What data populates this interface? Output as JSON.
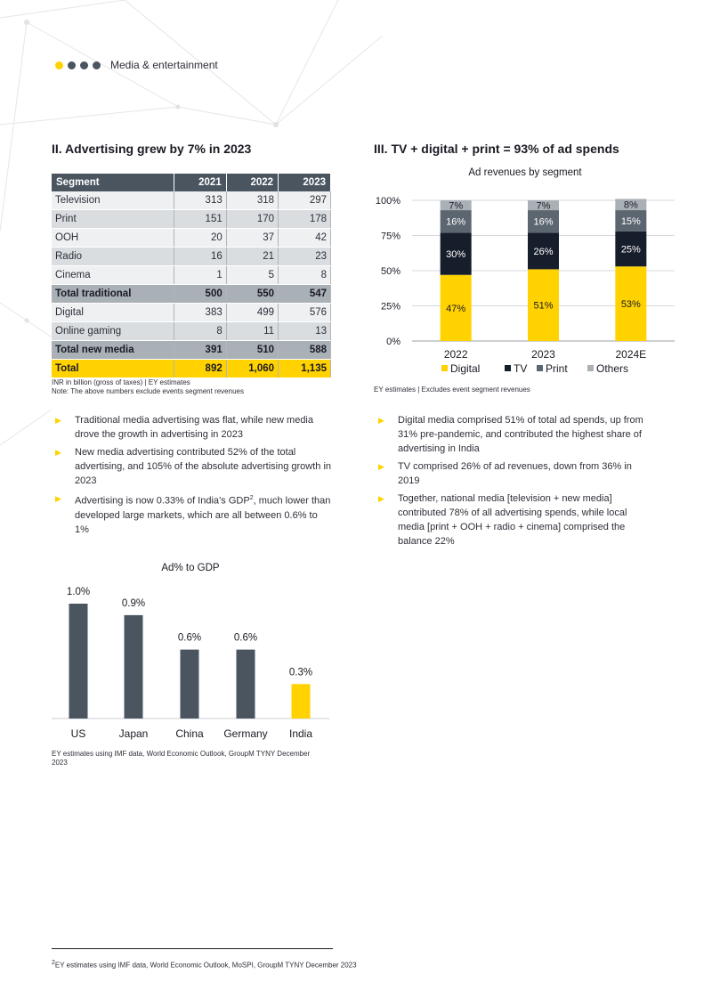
{
  "header": {
    "section": "Media & entertainment"
  },
  "left": {
    "title": "II. Advertising grew by 7% in 2023",
    "table": {
      "headers": [
        "Segment",
        "2021",
        "2022",
        "2023"
      ],
      "rows": [
        {
          "cells": [
            "Television",
            "313",
            "318",
            "297"
          ],
          "style": "odd"
        },
        {
          "cells": [
            "Print",
            "151",
            "170",
            "178"
          ],
          "style": "even"
        },
        {
          "cells": [
            "OOH",
            "20",
            "37",
            "42"
          ],
          "style": "odd"
        },
        {
          "cells": [
            "Radio",
            "16",
            "21",
            "23"
          ],
          "style": "even"
        },
        {
          "cells": [
            "Cinema",
            "1",
            "5",
            "8"
          ],
          "style": "odd"
        },
        {
          "cells": [
            "Total traditional",
            "500",
            "550",
            "547"
          ],
          "style": "sub"
        },
        {
          "cells": [
            "Digital",
            "383",
            "499",
            "576"
          ],
          "style": "odd"
        },
        {
          "cells": [
            "Online gaming",
            "8",
            "11",
            "13"
          ],
          "style": "even"
        },
        {
          "cells": [
            "Total new media",
            "391",
            "510",
            "588"
          ],
          "style": "sub"
        },
        {
          "cells": [
            "Total",
            "892",
            "1,060",
            "1,135"
          ],
          "style": "tot"
        }
      ]
    },
    "note1": "INR in billion (gross of taxes) | EY estimates",
    "note2": "Note: The above numbers exclude events segment revenues",
    "bullets": [
      {
        "text": "Traditional media advertising was flat, while new media drove the growth in advertising in 2023"
      },
      {
        "text": "New media advertising contributed 52% of the total advertising, and 105% of the absolute advertising growth in 2023"
      },
      {
        "pre": "Advertising is now 0.33% of India’s GDP",
        "sup": "2",
        "post": ", much lower than developed large markets, which are all between 0.6% to 1%"
      }
    ],
    "gdp_source": "EY estimates using IMF data, World Economic Outlook, GroupM TYNY December 2023"
  },
  "right": {
    "title": "III. TV + digital + print = 93% of ad spends",
    "source": "EY estimates | Excludes event segment revenues",
    "bullets": [
      "Digital media comprised 51% of total ad spends, up from 31% pre-pandemic, and contributed the highest share of advertising in India",
      "TV comprised 26% of ad revenues, down from 36% in 2019",
      "Together, national media [television + new media] contributed 78% of all advertising spends, while local media [print + OOH + radio + cinema] comprised the balance 22%"
    ]
  },
  "footnote": "EY estimates using IMF data, World Economic Outlook, MoSPI, GroupM TYNY December 2023",
  "footnote_mark": "2",
  "colors": {
    "accent": "#ffd200",
    "dark": "#4a5560",
    "navy": "#161d2b",
    "grey": "#a9b0b6"
  },
  "chart_data": [
    {
      "type": "bar",
      "stacked": true,
      "title": "Ad revenues by segment",
      "categories": [
        "2022",
        "2023",
        "2024E"
      ],
      "series": [
        {
          "name": "Digital",
          "values": [
            47,
            51,
            53
          ],
          "labels": [
            "47%",
            "51%",
            "53%"
          ],
          "color": "#ffd200"
        },
        {
          "name": "TV",
          "values": [
            30,
            26,
            25
          ],
          "labels": [
            "30%",
            "26%",
            "25%"
          ],
          "color": "#161d2b"
        },
        {
          "name": "Print",
          "values": [
            16,
            16,
            15
          ],
          "labels": [
            "16%",
            "16%",
            "15%"
          ],
          "color": "#5c6670"
        },
        {
          "name": "Others",
          "values": [
            7,
            7,
            8
          ],
          "labels": [
            "7%",
            "7%",
            "8%"
          ],
          "color": "#a9b0b6"
        }
      ],
      "yticks": [
        "0%",
        "25%",
        "50%",
        "75%",
        "100%"
      ],
      "ylim": [
        0,
        100
      ],
      "legend": "bottom"
    },
    {
      "type": "bar",
      "title": "Ad% to GDP",
      "categories": [
        "US",
        "Japan",
        "China",
        "Germany",
        "India"
      ],
      "values": [
        1.0,
        0.9,
        0.6,
        0.6,
        0.3
      ],
      "labels": [
        "1.0%",
        "0.9%",
        "0.6%",
        "0.6%",
        "0.3%"
      ],
      "colors": [
        "#4a5560",
        "#4a5560",
        "#4a5560",
        "#4a5560",
        "#ffd200"
      ],
      "ylim": [
        0,
        1.0
      ]
    }
  ]
}
